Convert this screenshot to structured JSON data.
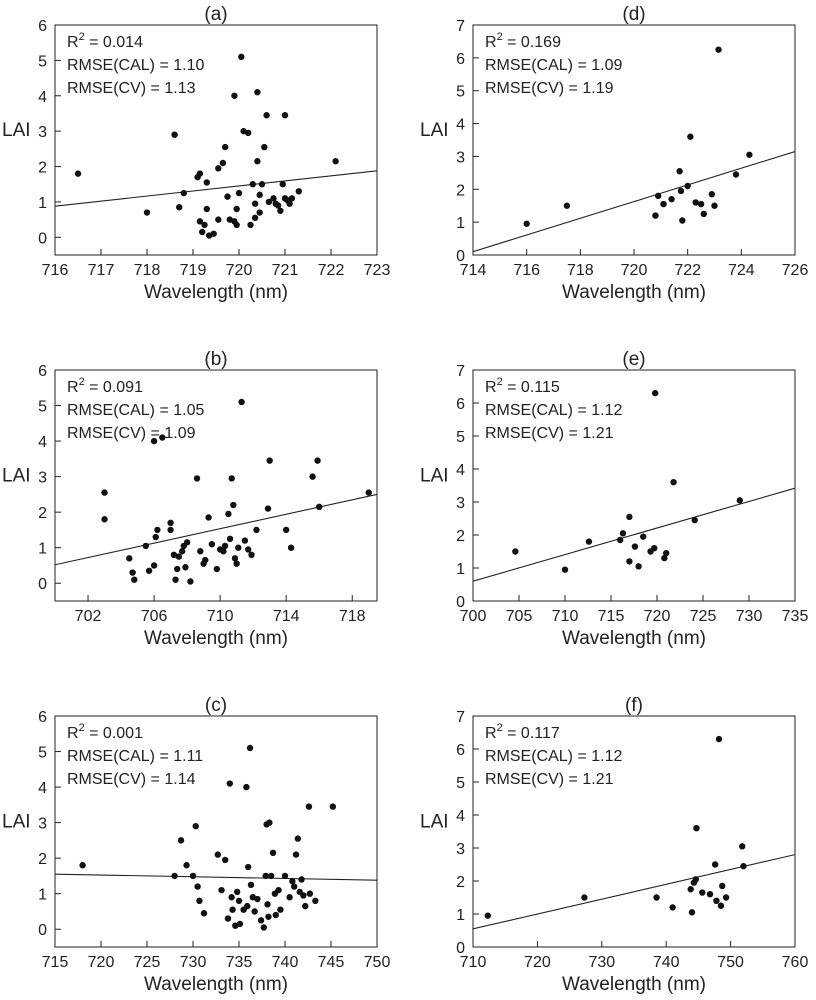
{
  "chart_data": [
    {
      "id": "a",
      "type": "scatter",
      "title": "(a)",
      "xlabel": "Wavelength (nm)",
      "ylabel": "LAI",
      "xlim": [
        716,
        723
      ],
      "ylim": [
        -0.5,
        6
      ],
      "xticks": [
        716,
        717,
        718,
        719,
        720,
        721,
        722,
        723
      ],
      "yticks": [
        0,
        1,
        2,
        3,
        4,
        5,
        6
      ],
      "stats": [
        "0.014",
        "RMSE(CAL) = 1.10",
        "RMSE(CV) = 1.13"
      ],
      "fit": [
        [
          716,
          0.88
        ],
        [
          723,
          1.88
        ]
      ],
      "points": [
        [
          716.5,
          1.8
        ],
        [
          718.0,
          0.7
        ],
        [
          718.6,
          2.9
        ],
        [
          718.7,
          0.85
        ],
        [
          718.8,
          1.25
        ],
        [
          719.1,
          1.7
        ],
        [
          719.15,
          1.8
        ],
        [
          719.15,
          0.45
        ],
        [
          719.2,
          0.15
        ],
        [
          719.25,
          0.35
        ],
        [
          719.3,
          1.55
        ],
        [
          719.3,
          0.8
        ],
        [
          719.35,
          0.05
        ],
        [
          719.45,
          0.1
        ],
        [
          719.55,
          1.95
        ],
        [
          719.55,
          0.5
        ],
        [
          719.65,
          2.1
        ],
        [
          719.7,
          2.55
        ],
        [
          719.75,
          1.15
        ],
        [
          719.8,
          0.5
        ],
        [
          719.9,
          0.45
        ],
        [
          719.9,
          4.0
        ],
        [
          719.95,
          0.35
        ],
        [
          719.95,
          0.8
        ],
        [
          720.0,
          1.25
        ],
        [
          720.05,
          5.1
        ],
        [
          720.1,
          3.0
        ],
        [
          720.2,
          2.95
        ],
        [
          720.25,
          0.35
        ],
        [
          720.3,
          1.5
        ],
        [
          720.35,
          0.95
        ],
        [
          720.35,
          0.55
        ],
        [
          720.4,
          2.15
        ],
        [
          720.4,
          4.1
        ],
        [
          720.45,
          0.7
        ],
        [
          720.45,
          1.2
        ],
        [
          720.5,
          1.5
        ],
        [
          720.55,
          2.55
        ],
        [
          720.6,
          3.45
        ],
        [
          720.65,
          1.0
        ],
        [
          720.75,
          1.1
        ],
        [
          720.8,
          0.95
        ],
        [
          720.85,
          0.9
        ],
        [
          720.9,
          0.75
        ],
        [
          720.95,
          1.5
        ],
        [
          721.0,
          1.1
        ],
        [
          721.0,
          3.45
        ],
        [
          721.05,
          1.05
        ],
        [
          721.1,
          0.95
        ],
        [
          721.15,
          1.1
        ],
        [
          721.3,
          1.3
        ],
        [
          722.1,
          2.15
        ]
      ]
    },
    {
      "id": "d",
      "type": "scatter",
      "title": "(d)",
      "xlabel": "Wavelength (nm)",
      "ylabel": "LAI",
      "xlim": [
        714,
        726
      ],
      "ylim": [
        0,
        7
      ],
      "xticks": [
        714,
        716,
        718,
        720,
        722,
        724,
        726
      ],
      "yticks": [
        0,
        1,
        2,
        3,
        4,
        5,
        6,
        7
      ],
      "stats": [
        "0.169",
        "RMSE(CAL) = 1.09",
        "RMSE(CV) = 1.19"
      ],
      "fit": [
        [
          714,
          0.1
        ],
        [
          726,
          3.15
        ]
      ],
      "points": [
        [
          716.0,
          0.95
        ],
        [
          717.5,
          1.5
        ],
        [
          720.8,
          1.2
        ],
        [
          720.9,
          1.8
        ],
        [
          721.1,
          1.55
        ],
        [
          721.4,
          1.7
        ],
        [
          721.7,
          2.55
        ],
        [
          721.75,
          1.95
        ],
        [
          721.8,
          1.05
        ],
        [
          722.0,
          2.1
        ],
        [
          722.1,
          3.6
        ],
        [
          722.3,
          1.6
        ],
        [
          722.5,
          1.55
        ],
        [
          722.6,
          1.25
        ],
        [
          722.9,
          1.85
        ],
        [
          723.0,
          1.5
        ],
        [
          723.15,
          6.25
        ],
        [
          723.8,
          2.45
        ],
        [
          724.3,
          3.05
        ]
      ]
    },
    {
      "id": "b",
      "type": "scatter",
      "title": "(b)",
      "xlabel": "Wavelength (nm)",
      "ylabel": "LAI",
      "xlim": [
        700,
        719.5
      ],
      "ylim": [
        -0.5,
        6
      ],
      "xticks": [
        702,
        706,
        710,
        714,
        718
      ],
      "yticks": [
        0,
        1,
        2,
        3,
        4,
        5,
        6
      ],
      "stats": [
        "0.091",
        "RMSE(CAL) = 1.05",
        "RMSE(CV) = 1.09"
      ],
      "fit": [
        [
          700,
          0.52
        ],
        [
          719.5,
          2.5
        ]
      ],
      "points": [
        [
          703.0,
          2.55
        ],
        [
          703.0,
          1.8
        ],
        [
          704.5,
          0.7
        ],
        [
          704.7,
          0.3
        ],
        [
          704.8,
          0.1
        ],
        [
          705.5,
          1.05
        ],
        [
          705.7,
          0.35
        ],
        [
          706.0,
          4.0
        ],
        [
          706.0,
          0.5
        ],
        [
          706.1,
          1.3
        ],
        [
          706.2,
          1.5
        ],
        [
          706.5,
          4.1
        ],
        [
          707.0,
          1.5
        ],
        [
          707.0,
          1.7
        ],
        [
          707.2,
          0.8
        ],
        [
          707.3,
          0.1
        ],
        [
          707.4,
          0.4
        ],
        [
          707.5,
          0.75
        ],
        [
          707.7,
          0.9
        ],
        [
          707.8,
          1.05
        ],
        [
          707.9,
          0.45
        ],
        [
          708.0,
          1.15
        ],
        [
          708.2,
          0.05
        ],
        [
          708.6,
          2.95
        ],
        [
          708.8,
          0.9
        ],
        [
          709.0,
          0.55
        ],
        [
          709.1,
          0.65
        ],
        [
          709.3,
          1.85
        ],
        [
          709.5,
          1.1
        ],
        [
          709.8,
          0.4
        ],
        [
          710.0,
          0.95
        ],
        [
          710.2,
          0.9
        ],
        [
          710.3,
          1.05
        ],
        [
          710.5,
          1.95
        ],
        [
          710.6,
          1.25
        ],
        [
          710.7,
          2.95
        ],
        [
          710.8,
          2.2
        ],
        [
          710.9,
          0.7
        ],
        [
          711.0,
          0.55
        ],
        [
          711.1,
          1.0
        ],
        [
          711.3,
          5.1
        ],
        [
          711.5,
          1.2
        ],
        [
          711.7,
          0.95
        ],
        [
          711.9,
          0.8
        ],
        [
          712.2,
          1.5
        ],
        [
          712.9,
          2.1
        ],
        [
          713.0,
          3.45
        ],
        [
          714.0,
          1.5
        ],
        [
          714.3,
          1.0
        ],
        [
          715.6,
          3.0
        ],
        [
          715.9,
          3.45
        ],
        [
          716.0,
          2.15
        ],
        [
          719.0,
          2.55
        ]
      ]
    },
    {
      "id": "e",
      "type": "scatter",
      "title": "(e)",
      "xlabel": "Wavelength (nm)",
      "ylabel": "LAI",
      "xlim": [
        700,
        735
      ],
      "ylim": [
        0,
        7
      ],
      "xticks": [
        700,
        705,
        710,
        715,
        720,
        725,
        730,
        735
      ],
      "yticks": [
        0,
        1,
        2,
        3,
        4,
        5,
        6,
        7
      ],
      "stats": [
        "0.115",
        "RMSE(CAL) = 1.12",
        "RMSE(CV) = 1.21"
      ],
      "fit": [
        [
          700,
          0.6
        ],
        [
          735,
          3.42
        ]
      ],
      "points": [
        [
          704.6,
          1.5
        ],
        [
          710.0,
          0.95
        ],
        [
          712.6,
          1.8
        ],
        [
          716.0,
          1.85
        ],
        [
          716.3,
          2.05
        ],
        [
          717.0,
          2.55
        ],
        [
          717.0,
          1.2
        ],
        [
          717.6,
          1.65
        ],
        [
          718.0,
          1.05
        ],
        [
          718.5,
          1.95
        ],
        [
          719.3,
          1.5
        ],
        [
          719.7,
          1.6
        ],
        [
          719.8,
          6.3
        ],
        [
          720.8,
          1.3
        ],
        [
          721.0,
          1.45
        ],
        [
          721.8,
          3.6
        ],
        [
          724.1,
          2.45
        ],
        [
          729.0,
          3.05
        ]
      ]
    },
    {
      "id": "c",
      "type": "scatter",
      "title": "(c)",
      "xlabel": "Wavelength (nm)",
      "ylabel": "LAI",
      "xlim": [
        715,
        750
      ],
      "ylim": [
        -0.5,
        6
      ],
      "xticks": [
        715,
        720,
        725,
        730,
        735,
        740,
        745,
        750
      ],
      "yticks": [
        0,
        1,
        2,
        3,
        4,
        5,
        6
      ],
      "stats": [
        "0.001",
        "RMSE(CAL) = 1.11",
        "RMSE(CV) = 1.14"
      ],
      "fit": [
        [
          715,
          1.55
        ],
        [
          750,
          1.38
        ]
      ],
      "points": [
        [
          718.0,
          1.8
        ],
        [
          728.0,
          1.5
        ],
        [
          728.7,
          2.5
        ],
        [
          729.3,
          1.8
        ],
        [
          730.0,
          1.5
        ],
        [
          730.3,
          2.9
        ],
        [
          730.5,
          1.2
        ],
        [
          730.7,
          0.8
        ],
        [
          731.2,
          0.45
        ],
        [
          732.7,
          2.1
        ],
        [
          733.1,
          1.1
        ],
        [
          733.5,
          1.95
        ],
        [
          733.8,
          0.3
        ],
        [
          734.0,
          4.1
        ],
        [
          734.2,
          0.9
        ],
        [
          734.3,
          0.55
        ],
        [
          734.6,
          0.1
        ],
        [
          734.8,
          1.05
        ],
        [
          735.0,
          0.8
        ],
        [
          735.1,
          0.15
        ],
        [
          735.5,
          0.55
        ],
        [
          735.8,
          4.0
        ],
        [
          735.9,
          0.65
        ],
        [
          736.0,
          1.75
        ],
        [
          736.2,
          5.1
        ],
        [
          736.3,
          1.25
        ],
        [
          736.5,
          0.9
        ],
        [
          736.7,
          0.5
        ],
        [
          737.0,
          0.85
        ],
        [
          737.4,
          0.25
        ],
        [
          737.7,
          0.05
        ],
        [
          737.9,
          1.5
        ],
        [
          738.0,
          2.95
        ],
        [
          738.1,
          0.7
        ],
        [
          738.2,
          0.35
        ],
        [
          738.3,
          3.0
        ],
        [
          738.5,
          1.5
        ],
        [
          738.7,
          2.15
        ],
        [
          738.9,
          1.0
        ],
        [
          739.0,
          0.4
        ],
        [
          739.3,
          1.1
        ],
        [
          739.5,
          0.55
        ],
        [
          740.0,
          1.5
        ],
        [
          740.5,
          0.9
        ],
        [
          740.8,
          1.35
        ],
        [
          741.0,
          1.2
        ],
        [
          741.2,
          2.1
        ],
        [
          741.4,
          2.55
        ],
        [
          741.6,
          1.05
        ],
        [
          741.8,
          1.4
        ],
        [
          742.0,
          0.95
        ],
        [
          742.2,
          0.65
        ],
        [
          742.6,
          3.45
        ],
        [
          742.7,
          1.0
        ],
        [
          743.3,
          0.8
        ],
        [
          745.2,
          3.45
        ]
      ]
    },
    {
      "id": "f",
      "type": "scatter",
      "title": "(f)",
      "xlabel": "Wavelength (nm)",
      "ylabel": "LAI",
      "xlim": [
        710,
        760
      ],
      "ylim": [
        0,
        7
      ],
      "xticks": [
        710,
        720,
        730,
        740,
        750,
        760
      ],
      "yticks": [
        0,
        1,
        2,
        3,
        4,
        5,
        6,
        7
      ],
      "stats": [
        "0.117",
        "RMSE(CAL) = 1.12",
        "RMSE(CV) = 1.21"
      ],
      "fit": [
        [
          710,
          0.55
        ],
        [
          760,
          2.8
        ]
      ],
      "points": [
        [
          712.3,
          0.95
        ],
        [
          727.3,
          1.5
        ],
        [
          738.5,
          1.5
        ],
        [
          741.0,
          1.2
        ],
        [
          743.8,
          1.75
        ],
        [
          744.0,
          1.05
        ],
        [
          744.3,
          1.95
        ],
        [
          744.6,
          2.05
        ],
        [
          744.7,
          3.6
        ],
        [
          745.6,
          1.65
        ],
        [
          746.8,
          1.6
        ],
        [
          747.6,
          2.5
        ],
        [
          747.8,
          1.4
        ],
        [
          748.2,
          6.3
        ],
        [
          748.5,
          1.25
        ],
        [
          748.7,
          1.85
        ],
        [
          749.3,
          1.5
        ],
        [
          751.8,
          3.05
        ],
        [
          752.0,
          2.45
        ]
      ]
    }
  ]
}
